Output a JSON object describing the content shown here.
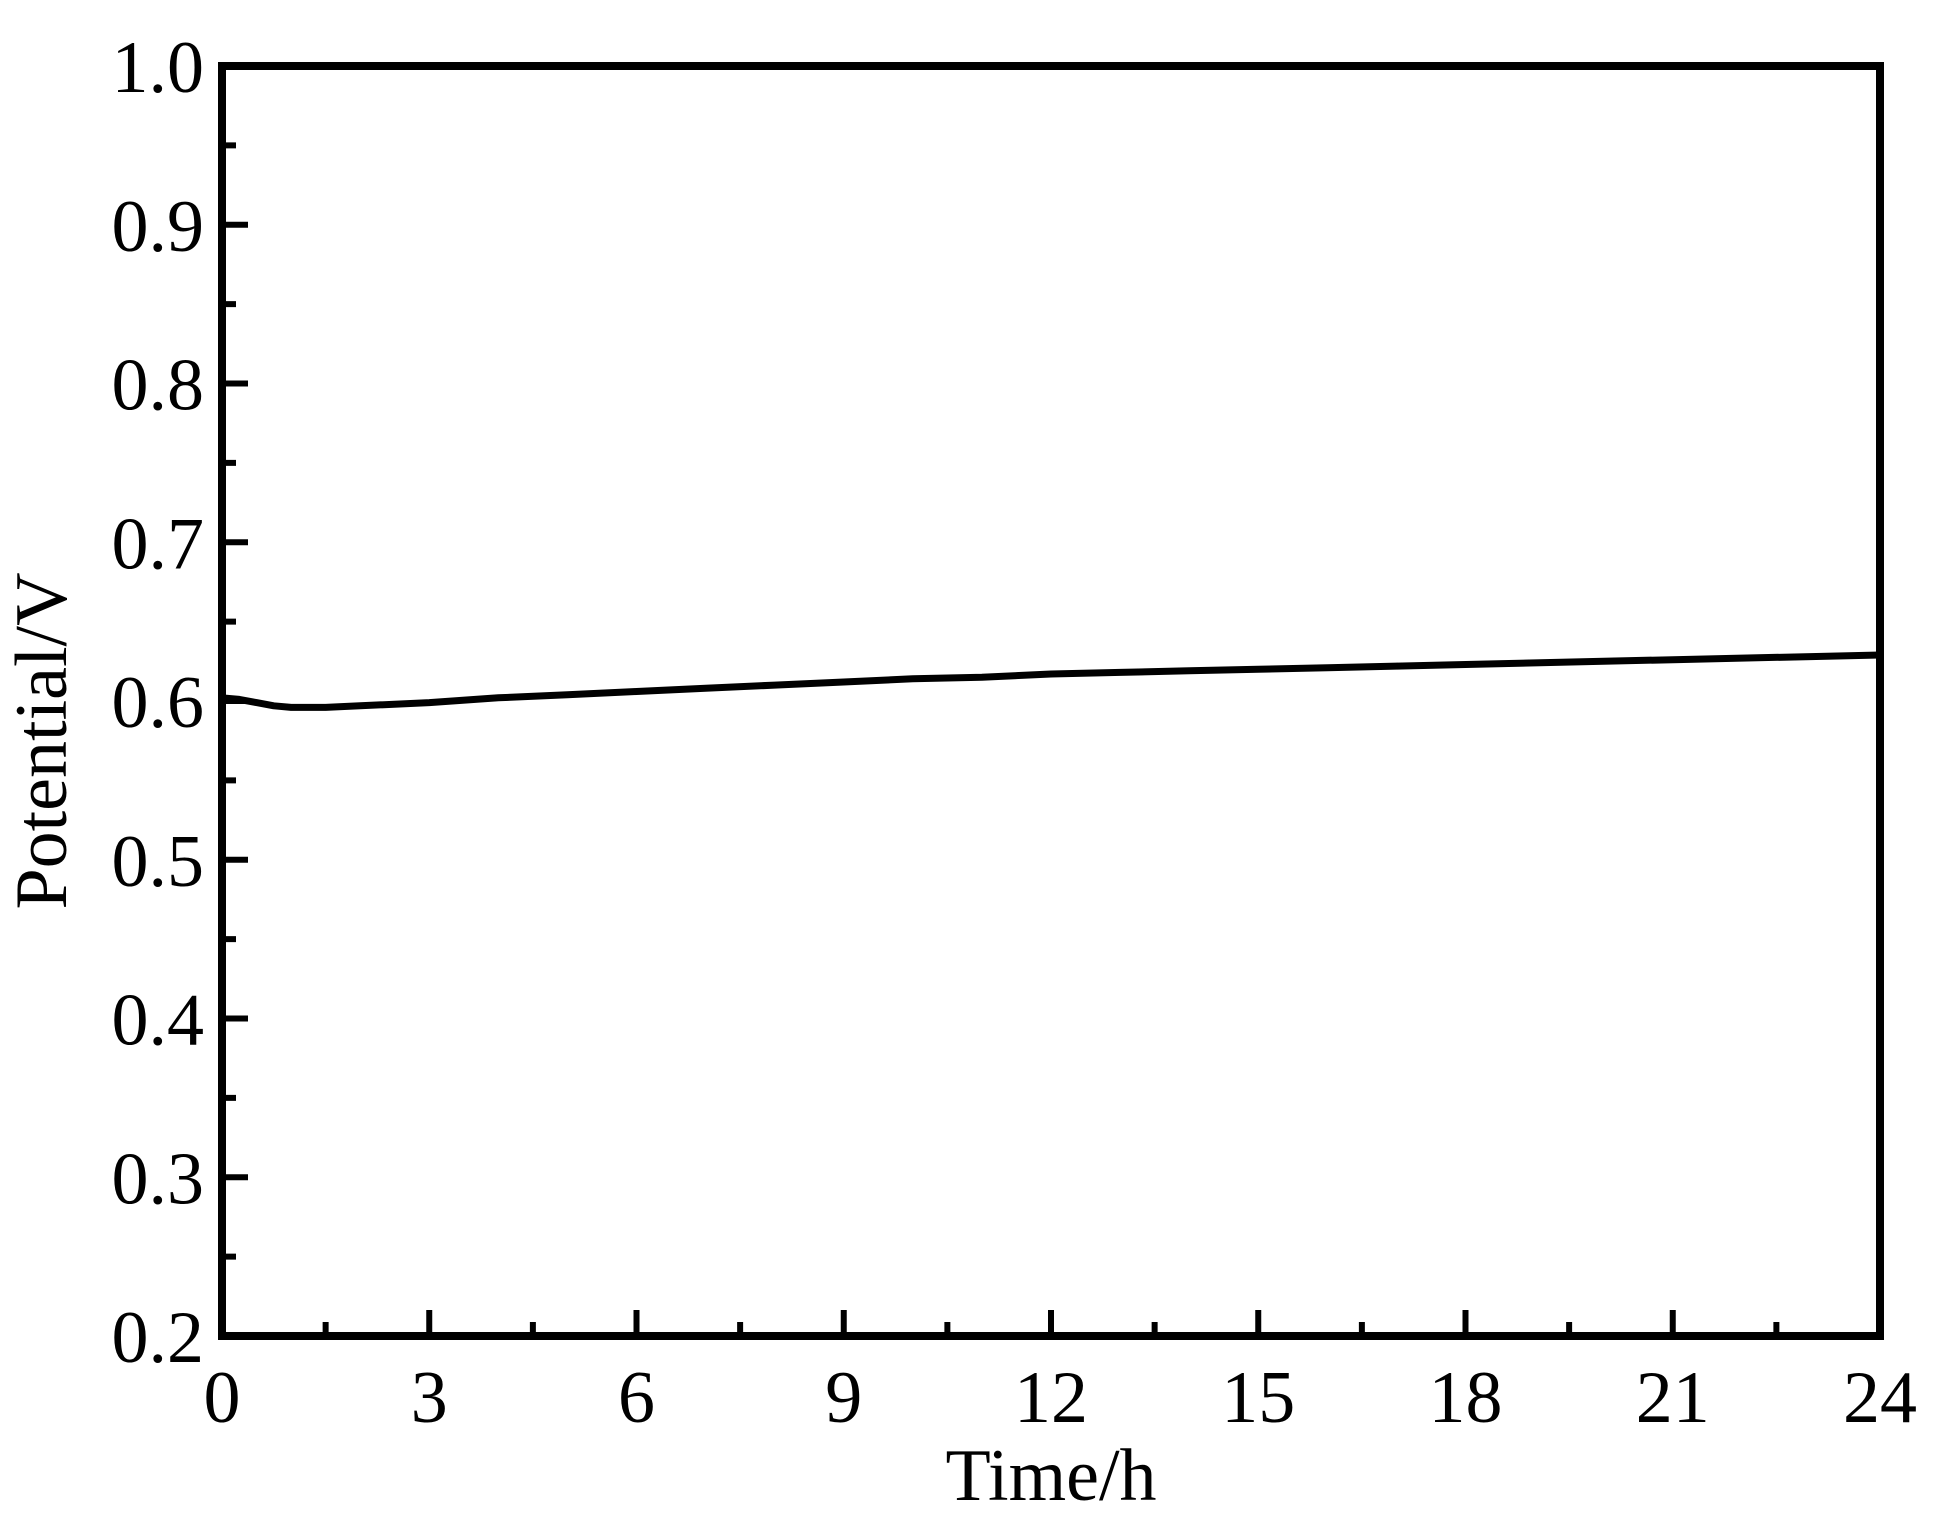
{
  "chart_data": {
    "type": "line",
    "title": "",
    "xlabel": "Time/h",
    "ylabel": "Potential/V",
    "xlim": [
      0,
      24
    ],
    "ylim": [
      0.2,
      1.0
    ],
    "xticks": [
      "0",
      "3",
      "6",
      "9",
      "12",
      "15",
      "18",
      "21",
      "24"
    ],
    "yticks": [
      "0.2",
      "0.3",
      "0.4",
      "0.5",
      "0.6",
      "0.7",
      "0.8",
      "0.9",
      "1.0"
    ],
    "grid": false,
    "legend": "none",
    "series": [
      {
        "color": "#000000",
        "x": [
          0,
          0.25,
          0.5,
          0.75,
          1.0,
          1.25,
          1.5,
          2,
          3,
          4,
          5,
          6,
          7,
          8,
          9,
          10,
          11,
          12,
          13,
          14,
          15,
          16,
          17,
          18,
          19,
          20,
          21,
          22,
          23,
          24
        ],
        "y": [
          0.602,
          0.601,
          0.599,
          0.597,
          0.596,
          0.596,
          0.596,
          0.597,
          0.599,
          0.602,
          0.604,
          0.606,
          0.608,
          0.61,
          0.612,
          0.614,
          0.615,
          0.617,
          0.618,
          0.619,
          0.62,
          0.621,
          0.622,
          0.623,
          0.624,
          0.625,
          0.626,
          0.627,
          0.628,
          0.629
        ]
      }
    ]
  }
}
